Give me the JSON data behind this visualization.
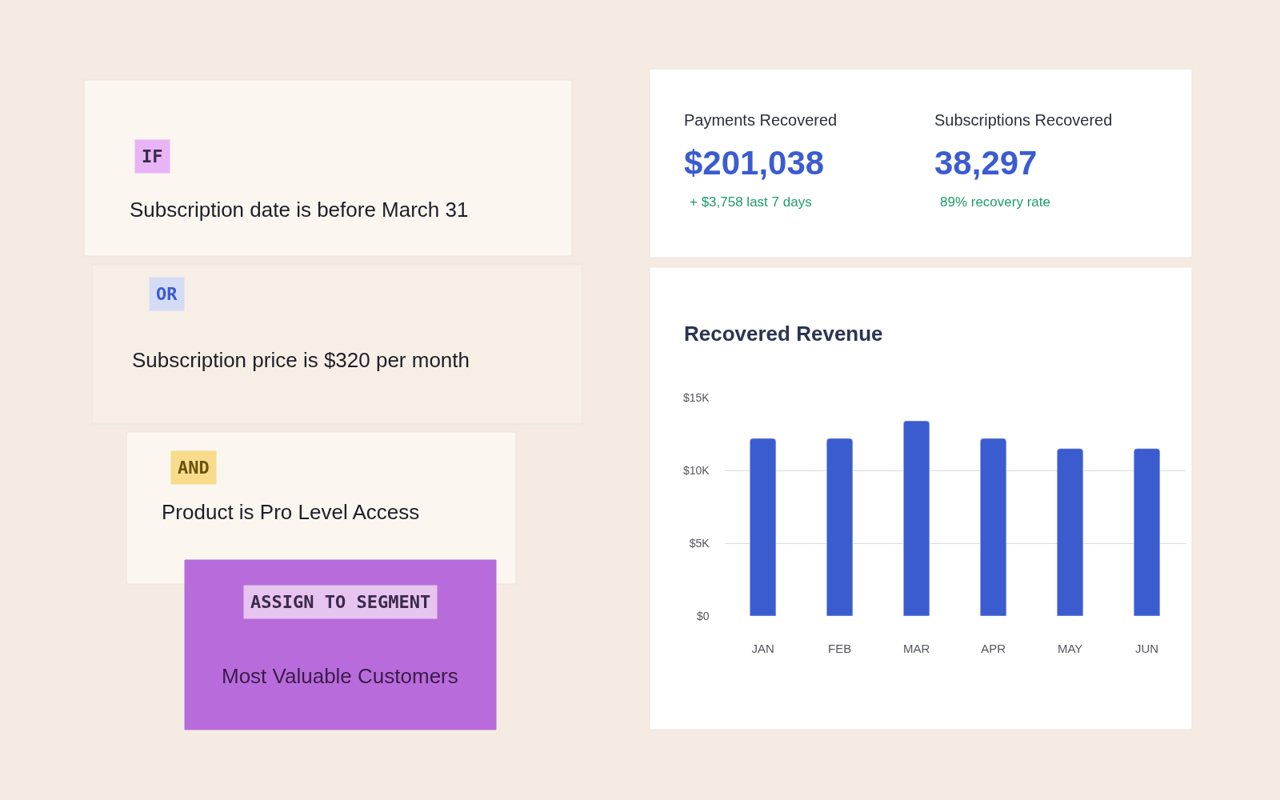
{
  "chart_data": [
    {
      "type": "other",
      "annotations": [
        "IF",
        "Subscription date is before March 31",
        "OR",
        "Subscription price is $320 per month",
        "AND",
        "Product is Pro Level Access",
        "ASSIGN TO SEGMENT",
        "Most Valuable Customers"
      ]
    },
    {
      "type": "other",
      "annotations": [
        "Payments Recovered",
        "$201,038",
        "+ $3,758 last 7 days",
        "Subscriptions Recovered",
        "38,297",
        "89% recovery rate"
      ]
    },
    {
      "type": "bar",
      "title": "Recovered Revenue",
      "categories": [
        "JAN",
        "FEB",
        "MAR",
        "APR",
        "MAY",
        "JUN"
      ],
      "values": [
        12200,
        12200,
        13400,
        12200,
        11500,
        11500
      ],
      "color": "#3b5ccf",
      "ylim": [
        0,
        15000
      ],
      "yticks": [
        {
          "value": 0,
          "label": "$0"
        },
        {
          "value": 5000,
          "label": "$5K"
        },
        {
          "value": 10000,
          "label": "$10K"
        },
        {
          "value": 15000,
          "label": "$15K"
        }
      ],
      "grid": "y"
    }
  ]
}
